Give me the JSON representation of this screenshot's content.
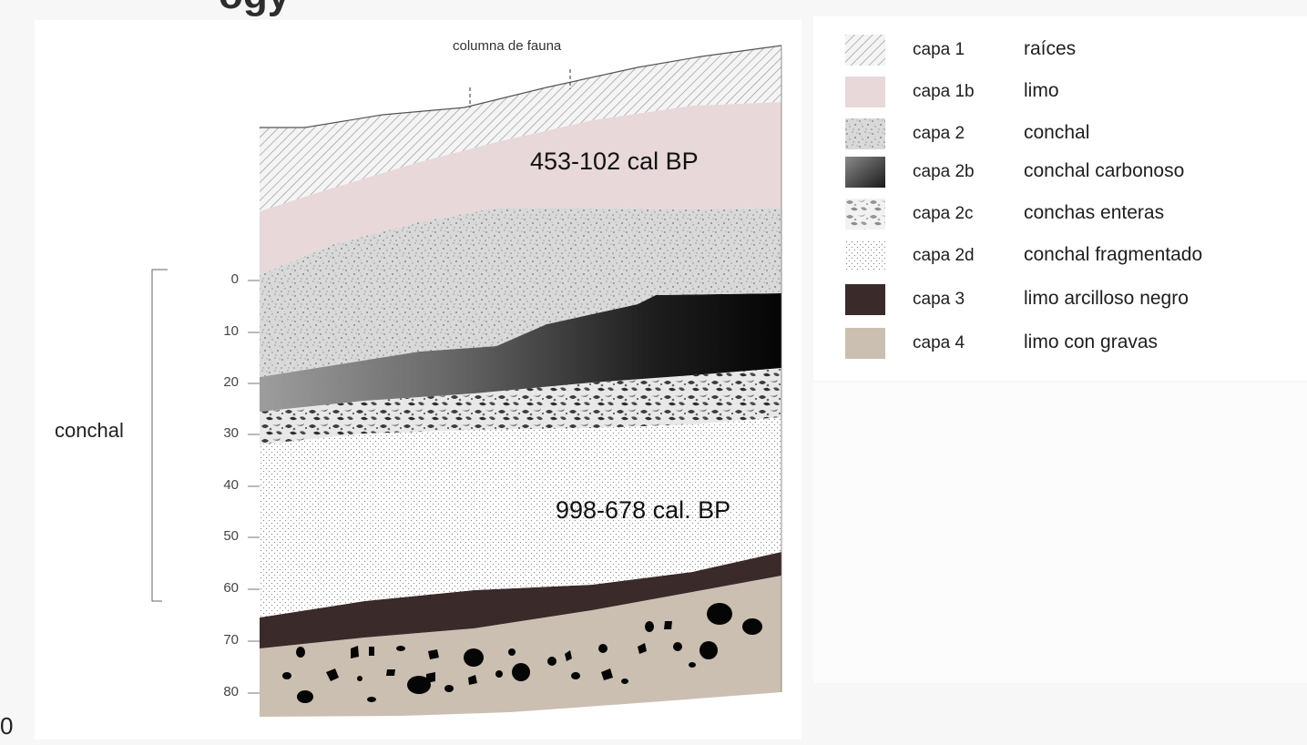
{
  "page": {
    "header_fragment": "ogy",
    "bottom_left_fragment": "0"
  },
  "section": {
    "top_label": "columna de fauna",
    "side_label": "conchal",
    "axis_ticks": [
      "0",
      "10",
      "20",
      "30",
      "40",
      "50",
      "60",
      "70",
      "80"
    ],
    "dates": [
      {
        "label": "453-102 cal BP"
      },
      {
        "label": "998-678 cal. BP"
      }
    ]
  },
  "legend": [
    {
      "code": "capa 1",
      "name": "raíces",
      "fill": "hatch",
      "color": "#b8b8b8"
    },
    {
      "code": "capa 1b",
      "name": "limo",
      "fill": "solid",
      "color": "#e8d8da"
    },
    {
      "code": "capa 2",
      "name": "conchal",
      "fill": "speckle",
      "color": "#bdbdbd"
    },
    {
      "code": "capa 2b",
      "name": "conchal carbonoso",
      "fill": "gradient",
      "color": "#4a4a4a"
    },
    {
      "code": "capa 2c",
      "name": "conchas enteras",
      "fill": "shells",
      "color": "#8a8a8a"
    },
    {
      "code": "capa 2d",
      "name": "conchal fragmentado",
      "fill": "dots",
      "color": "#bcbcbc"
    },
    {
      "code": "capa 3",
      "name": "limo arcilloso negro",
      "fill": "solid",
      "color": "#3a2a2a"
    },
    {
      "code": "capa 4",
      "name": "limo con gravas",
      "fill": "solid",
      "color": "#cbbfb2"
    }
  ]
}
